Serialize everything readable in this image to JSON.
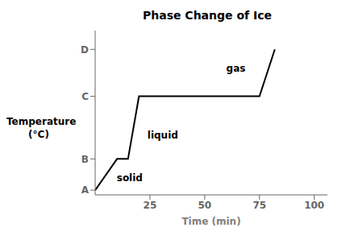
{
  "chart_data": {
    "type": "line",
    "title": "Phase Change of Ice",
    "xlabel": "Time (min)",
    "ylabel": "Temperature\n(°C)",
    "x": [
      0,
      10,
      15,
      20,
      75,
      82
    ],
    "values": [
      0,
      2,
      2,
      6,
      6,
      9
    ],
    "color": "#000000",
    "xlim": [
      0,
      106
    ],
    "ylim": [
      -0.3,
      10.2
    ],
    "xticks": [
      25,
      50,
      75,
      100
    ],
    "yticks": [
      {
        "value": 0,
        "label": "A"
      },
      {
        "value": 2,
        "label": "B"
      },
      {
        "value": 6,
        "label": "C"
      },
      {
        "value": 9,
        "label": "D"
      }
    ],
    "grid": false,
    "annotations": [
      {
        "text": "solid",
        "x": 8,
        "y": 0.8
      },
      {
        "text": "liquid",
        "x": 22,
        "y": 3.5
      },
      {
        "text": "gas",
        "x": 58,
        "y": 7.8
      }
    ]
  }
}
